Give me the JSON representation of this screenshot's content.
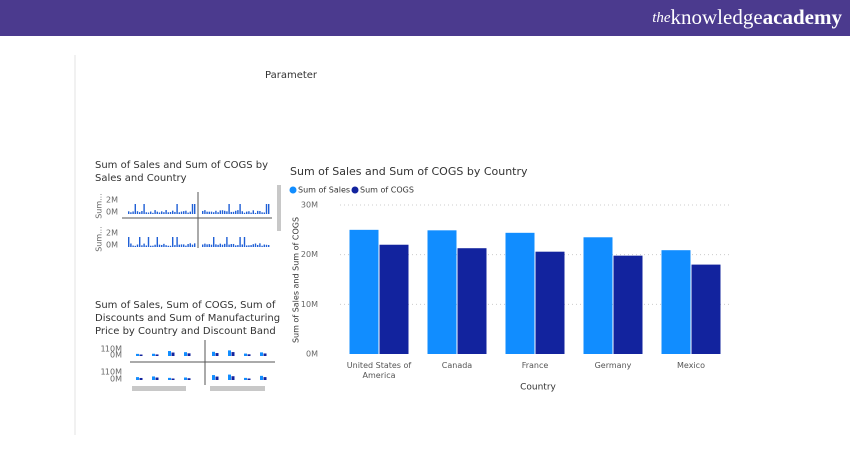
{
  "header": {
    "brand_prefix": "the",
    "brand_main": "knowledge",
    "brand_bold": "academy"
  },
  "parameter": "Parameter",
  "small_charts": [
    {
      "title_lines": [
        "Sum of Sales and Sum of COGS by",
        "Sales and Country"
      ],
      "row_labels": [
        "Sum...",
        "Sum..."
      ],
      "yticks": [
        "2M",
        "0M"
      ]
    },
    {
      "title_lines": [
        "Sum of Sales, Sum of COGS, Sum of",
        "Discounts and Sum of Manufacturing",
        "Price by Country and Discount Band"
      ],
      "row_labels": [
        "1",
        "1"
      ],
      "yticks": [
        "10M",
        "0M"
      ]
    }
  ],
  "chart_data": {
    "type": "bar",
    "title": "Sum of Sales and Sum of COGS by Country",
    "x_label": "Country",
    "y_label": "Sum of Sales and Sum of COGS",
    "categories": [
      "United States of America",
      "Canada",
      "France",
      "Germany",
      "Mexico"
    ],
    "series": [
      {
        "name": "Sum of Sales",
        "color": "#118DFF",
        "values": [
          25000000,
          24900000,
          24400000,
          23500000,
          20900000
        ]
      },
      {
        "name": "Sum of COGS",
        "color": "#12239E",
        "values": [
          22000000,
          21300000,
          20600000,
          19800000,
          18000000
        ]
      }
    ],
    "ylim": [
      0,
      30000000
    ],
    "yticks": [
      {
        "value": 0,
        "label": "0M"
      },
      {
        "value": 10000000,
        "label": "10M"
      },
      {
        "value": 20000000,
        "label": "20M"
      },
      {
        "value": 30000000,
        "label": "30M"
      }
    ],
    "grid": true,
    "legend": "top-left"
  }
}
